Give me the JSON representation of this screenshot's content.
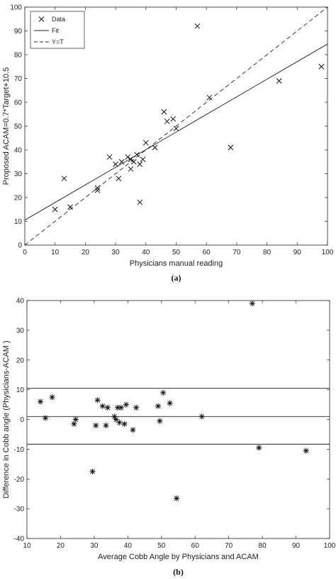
{
  "chart_data": [
    {
      "type": "scatter",
      "title": "",
      "caption": "(a)",
      "xlabel": "Physicians manual reading",
      "ylabel": "Proposed ACAM=0.7*Target+10.5",
      "xlim": [
        0,
        100
      ],
      "ylim": [
        0,
        100
      ],
      "xticks": [
        "0",
        "10",
        "20",
        "30",
        "40",
        "50",
        "60",
        "70",
        "80",
        "90",
        "100"
      ],
      "yticks": [
        "0",
        "10",
        "20",
        "30",
        "40",
        "50",
        "60",
        "70",
        "80",
        "90",
        "100"
      ],
      "grid": false,
      "legend_position": "top-left",
      "series": [
        {
          "name": "Data",
          "marker": "x",
          "x": [
            10,
            13,
            15,
            24,
            24,
            28,
            30,
            31,
            32,
            34,
            35,
            35,
            36,
            37,
            38,
            38,
            39,
            40,
            43,
            46,
            47,
            49,
            50,
            57,
            61,
            68,
            84,
            98
          ],
          "y": [
            15,
            28,
            16,
            23,
            24,
            37,
            34,
            28,
            35,
            37,
            36,
            32,
            35,
            38,
            34,
            18,
            36,
            43,
            41,
            56,
            52,
            53,
            49,
            92,
            62,
            41,
            69,
            75
          ]
        },
        {
          "name": "Fit",
          "style": "solid",
          "x": [
            0,
            100
          ],
          "y": [
            10.5,
            84.5
          ]
        },
        {
          "name": "Y=T",
          "style": "dashed",
          "x": [
            0,
            100
          ],
          "y": [
            0,
            100
          ]
        }
      ]
    },
    {
      "type": "scatter",
      "title": "",
      "caption": "(b)",
      "xlabel": "Average Cobb Angle by Physicians and ACAM",
      "ylabel": "Difference in Cobb angle (Physicians-ACAM )",
      "xlim": [
        10,
        100
      ],
      "ylim": [
        -40,
        40
      ],
      "xticks": [
        "10",
        "20",
        "30",
        "40",
        "50",
        "60",
        "70",
        "80",
        "90",
        "100"
      ],
      "yticks": [
        "-40",
        "-30",
        "-20",
        "-10",
        "0",
        "10",
        "20",
        "30",
        "40"
      ],
      "grid": false,
      "series": [
        {
          "marker": "*",
          "x": [
            14,
            15.5,
            17.5,
            24,
            24.5,
            29.5,
            30.5,
            31,
            32.5,
            33.5,
            34,
            36,
            36.5,
            37,
            37.5,
            38,
            39,
            39.5,
            41.5,
            42.5,
            49,
            49.5,
            50.5,
            52.5,
            54.5,
            62,
            77,
            79,
            93
          ],
          "y": [
            6,
            0.5,
            7.5,
            -1.5,
            0,
            -17.5,
            -2,
            6.5,
            4.5,
            -2,
            4,
            1,
            0,
            4,
            -1,
            4,
            -1.5,
            5,
            -3.5,
            4,
            4.5,
            -0.5,
            9,
            5.5,
            -26.5,
            1,
            39,
            -9.5,
            -10.5
          ]
        }
      ],
      "hlines": [
        10.5,
        1,
        -8.3
      ]
    }
  ]
}
